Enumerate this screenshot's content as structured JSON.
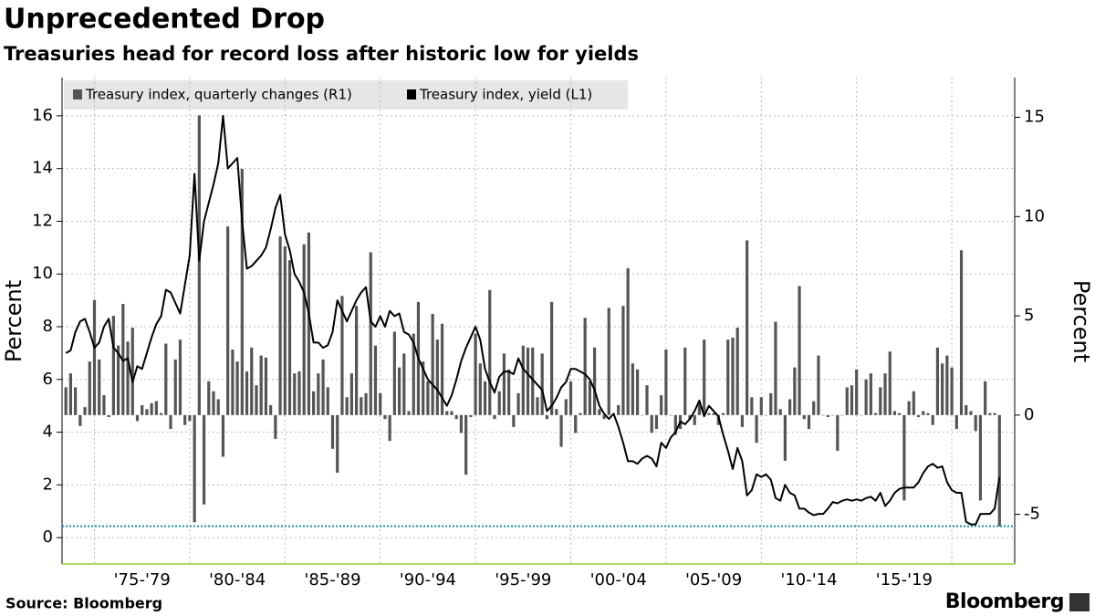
{
  "chart_data": {
    "type": "bar-line",
    "title": "Unprecedented Drop",
    "subtitle": "Treasuries head for record loss after historic low for yields",
    "source": "Source: Bloomberg",
    "brand": "Bloomberg",
    "y_label": "Percent",
    "y2_label": "Percent",
    "xlim": [
      1973.3,
      2023.3
    ],
    "xticks": [
      {
        "value": 1977.5,
        "label": "'75-'79"
      },
      {
        "value": 1982.5,
        "label": "'80-'84"
      },
      {
        "value": 1987.5,
        "label": "'85-'89"
      },
      {
        "value": 1992.5,
        "label": "'90-'94"
      },
      {
        "value": 1997.5,
        "label": "'95-'99"
      },
      {
        "value": 2002.5,
        "label": "'00-'04"
      },
      {
        "value": 2007.5,
        "label": "'05-'09"
      },
      {
        "value": 2012.5,
        "label": "'10-'14"
      },
      {
        "value": 2017.5,
        "label": "'15-'19"
      }
    ],
    "xgrid": [
      1975,
      1980,
      1985,
      1990,
      1995,
      2000,
      2005,
      2010,
      2015,
      2020
    ],
    "ylim": [
      -1,
      17.45
    ],
    "yticks": [
      0,
      2,
      4,
      6,
      8,
      10,
      12,
      14,
      16
    ],
    "y2lim": [
      -7.5,
      17
    ],
    "y2ticks": [
      -5,
      0,
      5,
      10,
      15
    ],
    "grid": true,
    "reference_line": {
      "value": -5.6,
      "axis": "y2",
      "color": "#1f8f9a"
    },
    "x": [
      1973.5,
      1973.75,
      1974,
      1974.25,
      1974.5,
      1974.75,
      1975,
      1975.25,
      1975.5,
      1975.75,
      1976,
      1976.25,
      1976.5,
      1976.75,
      1977,
      1977.25,
      1977.5,
      1977.75,
      1978,
      1978.25,
      1978.5,
      1978.75,
      1979,
      1979.25,
      1979.5,
      1979.75,
      1980,
      1980.25,
      1980.5,
      1980.75,
      1981,
      1981.25,
      1981.5,
      1981.75,
      1982,
      1982.25,
      1982.5,
      1982.75,
      1983,
      1983.25,
      1983.5,
      1983.75,
      1984,
      1984.25,
      1984.5,
      1984.75,
      1985,
      1985.25,
      1985.5,
      1985.75,
      1986,
      1986.25,
      1986.5,
      1986.75,
      1987,
      1987.25,
      1987.5,
      1987.75,
      1988,
      1988.25,
      1988.5,
      1988.75,
      1989,
      1989.25,
      1989.5,
      1989.75,
      1990,
      1990.25,
      1990.5,
      1990.75,
      1991,
      1991.25,
      1991.5,
      1991.75,
      1992,
      1992.25,
      1992.5,
      1992.75,
      1993,
      1993.25,
      1993.5,
      1993.75,
      1994,
      1994.25,
      1994.5,
      1994.75,
      1995,
      1995.25,
      1995.5,
      1995.75,
      1996,
      1996.25,
      1996.5,
      1996.75,
      1997,
      1997.25,
      1997.5,
      1997.75,
      1998,
      1998.25,
      1998.5,
      1998.75,
      1999,
      1999.25,
      1999.5,
      1999.75,
      2000,
      2000.25,
      2000.5,
      2000.75,
      2001,
      2001.25,
      2001.5,
      2001.75,
      2002,
      2002.25,
      2002.5,
      2002.75,
      2003,
      2003.25,
      2003.5,
      2003.75,
      2004,
      2004.25,
      2004.5,
      2004.75,
      2005,
      2005.25,
      2005.5,
      2005.75,
      2006,
      2006.25,
      2006.5,
      2006.75,
      2007,
      2007.25,
      2007.5,
      2007.75,
      2008,
      2008.25,
      2008.5,
      2008.75,
      2009,
      2009.25,
      2009.5,
      2009.75,
      2010,
      2010.25,
      2010.5,
      2010.75,
      2011,
      2011.25,
      2011.5,
      2011.75,
      2012,
      2012.25,
      2012.5,
      2012.75,
      2013,
      2013.25,
      2013.5,
      2013.75,
      2014,
      2014.25,
      2014.5,
      2014.75,
      2015,
      2015.25,
      2015.5,
      2015.75,
      2016,
      2016.25,
      2016.5,
      2016.75,
      2017,
      2017.25,
      2017.5,
      2017.75,
      2018,
      2018.25,
      2018.5,
      2018.75,
      2019,
      2019.25,
      2019.5,
      2019.75,
      2020,
      2020.25,
      2020.5,
      2020.75,
      2021,
      2021.25,
      2021.5,
      2021.75,
      2022,
      2022.25,
      2022.5
    ],
    "series": [
      {
        "name": "Treasury index, quarterly changes (R1)",
        "type": "bar",
        "axis": "y2",
        "color": "#555555",
        "values": [
          1.4,
          2.1,
          1.4,
          -0.55,
          0.4,
          2.7,
          5.8,
          2.8,
          1.0,
          -0.1,
          5.0,
          3.5,
          5.6,
          3.7,
          4.4,
          -0.3,
          0.5,
          0.3,
          0.6,
          0.7,
          0.1,
          3.6,
          -0.7,
          2.8,
          3.8,
          -0.5,
          -0.3,
          -5.4,
          15.1,
          -4.5,
          1.7,
          1.2,
          0.8,
          -2.1,
          9.5,
          3.3,
          2.7,
          12.4,
          2.2,
          3.4,
          1.5,
          3.0,
          2.9,
          0.5,
          -1.2,
          9.0,
          8.5,
          7.8,
          2.1,
          2.2,
          8.6,
          9.2,
          1.2,
          2.1,
          2.8,
          1.4,
          -1.7,
          -2.9,
          6.0,
          0.9,
          2.1,
          5.5,
          0.9,
          1.1,
          8.2,
          3.5,
          1.1,
          -0.2,
          -1.3,
          4.2,
          2.4,
          3.1,
          0.2,
          4.1,
          5.7,
          2.7,
          1.7,
          5.1,
          3.8,
          4.6,
          0.2,
          0.2,
          -0.2,
          -0.9,
          -3.0,
          -0.1,
          4.1,
          2.6,
          1.7,
          6.3,
          -0.2,
          1.2,
          3.1,
          2.3,
          -0.6,
          1.1,
          3.5,
          3.4,
          3.4,
          0.9,
          3.1,
          -0.2,
          5.7,
          0.3,
          -1.6,
          0.8,
          1.7,
          -0.9,
          0.1,
          4.9,
          1.7,
          3.4,
          0.3,
          -0.2,
          5.4,
          0,
          0.5,
          5.5,
          7.4,
          2.6,
          2.3,
          0,
          1.5,
          -0.9,
          -0.7,
          1.0,
          3.3,
          0,
          -1.0,
          -0.7,
          3.4,
          -0.2,
          -0.5,
          0.7,
          3.8,
          0.1,
          0.1,
          -0.5,
          0.1,
          3.8,
          3.9,
          4.4,
          -0.6,
          8.8,
          0.9,
          -1.4,
          0.9,
          0,
          1.1,
          4.7,
          0.3,
          -2.3,
          0.8,
          2.4,
          6.5,
          -0.2,
          -0.7,
          0.7,
          3.0,
          0,
          -0.1,
          0,
          -1.8,
          0,
          1.4,
          1.5,
          2.3,
          0,
          1.8,
          2.1,
          0.1,
          1.4,
          2.1,
          3.2,
          0.2,
          0.1,
          -4.3,
          0.7,
          1.2,
          -0.1,
          0.2,
          0.1,
          -0.5,
          3.4,
          2.6,
          3.0,
          2.4,
          -0.7,
          8.3,
          0.5,
          0.2,
          -0.8,
          -4.3,
          1.7,
          0.1,
          0.1,
          -5.6
        ]
      },
      {
        "name": "Treasury index, yield (L1)",
        "type": "line",
        "color": "#000000",
        "values": [
          7.0,
          7.1,
          7.8,
          8.2,
          8.3,
          7.8,
          7.2,
          7.4,
          8.0,
          8.3,
          7.2,
          7.0,
          6.7,
          6.8,
          5.9,
          6.5,
          6.4,
          7.0,
          7.6,
          8.1,
          8.4,
          9.4,
          9.3,
          8.9,
          8.5,
          9.6,
          10.7,
          13.8,
          10.5,
          12.0,
          12.7,
          13.4,
          14.2,
          16.0,
          14.0,
          14.2,
          14.4,
          12.0,
          10.2,
          10.3,
          10.5,
          10.7,
          11.0,
          11.7,
          12.5,
          13.0,
          11.5,
          10.9,
          10.0,
          9.7,
          9.3,
          8.5,
          7.4,
          7.4,
          7.2,
          7.3,
          7.8,
          9.0,
          8.6,
          8.2,
          8.6,
          9.0,
          9.3,
          9.5,
          8.2,
          8.0,
          8.4,
          8.0,
          8.6,
          8.4,
          8.5,
          7.8,
          7.7,
          7.4,
          6.8,
          6.4,
          6.0,
          5.8,
          5.6,
          5.3,
          5.0,
          5.4,
          6.0,
          6.7,
          7.2,
          7.6,
          8.0,
          7.5,
          6.4,
          5.9,
          5.5,
          6.1,
          6.3,
          6.3,
          6.2,
          6.8,
          6.4,
          6.2,
          6.0,
          5.8,
          5.6,
          4.8,
          5.0,
          5.3,
          5.7,
          5.9,
          6.4,
          6.4,
          6.3,
          6.2,
          6.0,
          5.6,
          5.0,
          4.7,
          4.5,
          4.7,
          4.2,
          3.6,
          2.9,
          2.9,
          2.8,
          3.0,
          3.1,
          3.0,
          2.7,
          3.6,
          3.4,
          3.8,
          4.0,
          4.4,
          4.3,
          4.5,
          4.8,
          5.2,
          4.6,
          5.0,
          4.8,
          4.6,
          3.9,
          3.3,
          2.6,
          3.4,
          2.9,
          1.6,
          1.8,
          2.4,
          2.3,
          2.4,
          2.2,
          1.5,
          1.4,
          2.0,
          1.7,
          1.6,
          1.1,
          1.1,
          0.95,
          0.85,
          0.9,
          0.9,
          1.1,
          1.35,
          1.3,
          1.4,
          1.45,
          1.4,
          1.45,
          1.4,
          1.5,
          1.55,
          1.4,
          1.7,
          1.2,
          1.4,
          1.7,
          1.85,
          1.9,
          1.9,
          1.9,
          2.1,
          2.45,
          2.7,
          2.8,
          2.65,
          2.7,
          2.1,
          1.8,
          1.7,
          1.7,
          0.6,
          0.5,
          0.5,
          0.9,
          0.9,
          0.9,
          1.1,
          2.3
        ]
      }
    ]
  }
}
